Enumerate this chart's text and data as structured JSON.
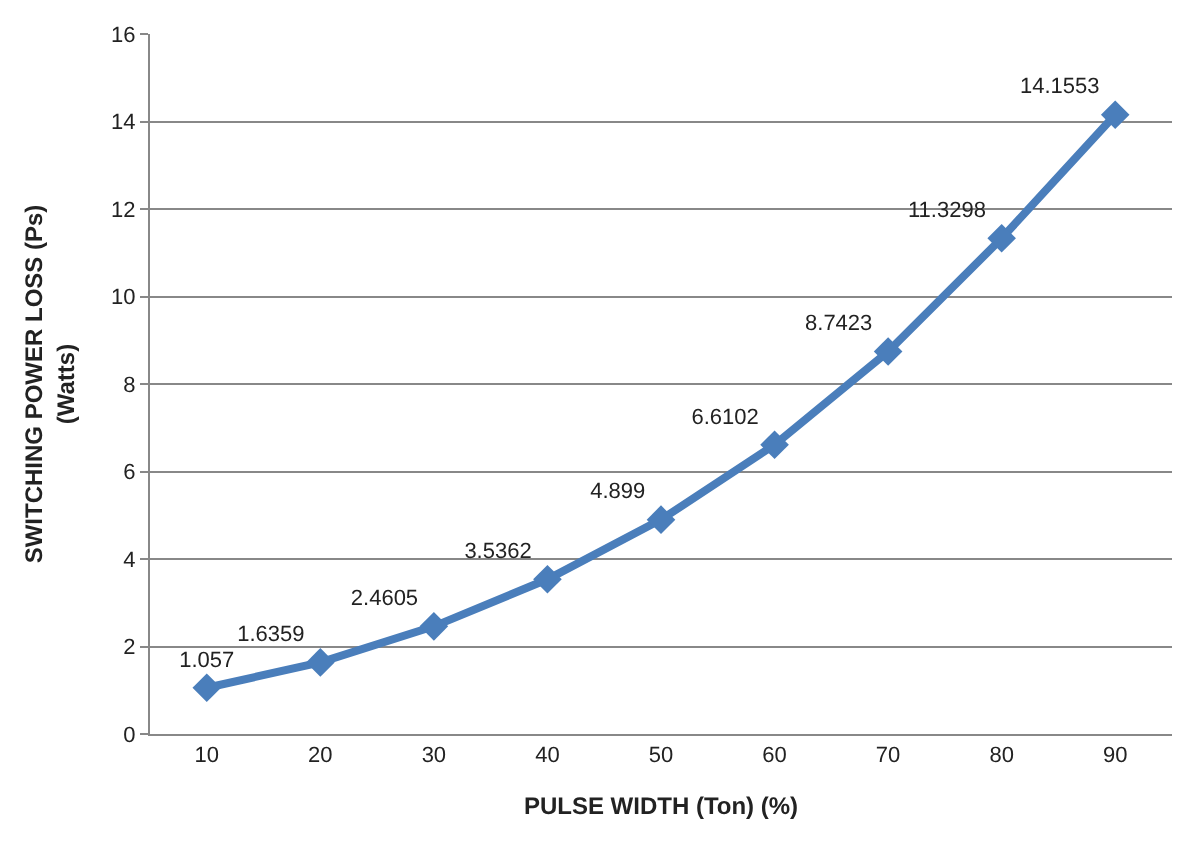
{
  "chart_data": {
    "type": "line",
    "xlabel": "PULSE WIDTH (Ton) (%)",
    "ylabel": "SWITCHING POWER LOSS (Ps)\n(Watts)",
    "categories": [
      "10",
      "20",
      "30",
      "40",
      "50",
      "60",
      "70",
      "80",
      "90"
    ],
    "series": [
      {
        "color": "#4a7ebb",
        "values": [
          1.057,
          1.6359,
          2.4605,
          3.5362,
          4.899,
          6.6102,
          8.7423,
          11.3298,
          14.1553
        ]
      }
    ],
    "ylim": [
      0,
      16
    ],
    "yticks": [
      0,
      2,
      4,
      6,
      8,
      10,
      12,
      14,
      16
    ],
    "grid": "y",
    "marker": "diamond",
    "line_style": "solid",
    "data_labels": true
  }
}
